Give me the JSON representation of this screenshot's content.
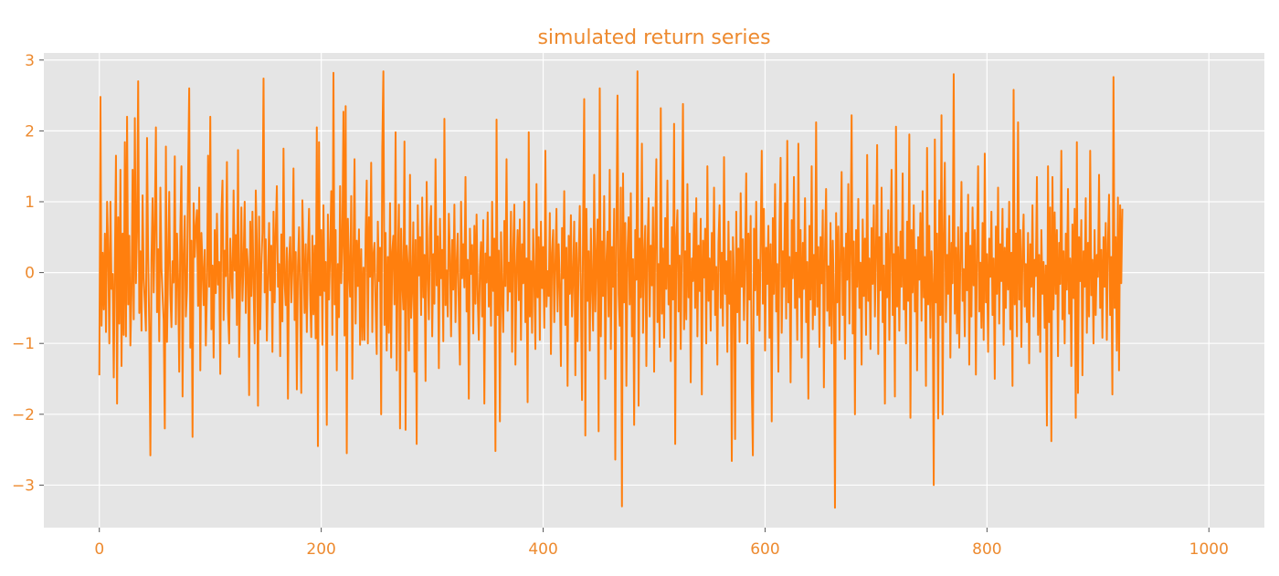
{
  "chart_data": {
    "type": "line",
    "title": "simulated return series",
    "xlabel": "",
    "ylabel": "",
    "xlim": [
      -50,
      1050
    ],
    "ylim": [
      -3.6,
      3.1
    ],
    "x_ticks": [
      0,
      200,
      400,
      600,
      800,
      1000
    ],
    "x_tick_labels": [
      "0",
      "200",
      "400",
      "600",
      "800",
      "1000"
    ],
    "y_ticks": [
      -3,
      -2,
      -1,
      0,
      1,
      2,
      3
    ],
    "y_tick_labels": [
      "−3",
      "−2",
      "−1",
      "0",
      "1",
      "2",
      "3"
    ],
    "grid": true,
    "legend": "none",
    "style": "ggplot",
    "colors": {
      "line": "#ff7f0e",
      "text": "#ed8a2f",
      "plot_background": "#e5e5e5",
      "grid": "#ffffff"
    },
    "series": [
      {
        "x_start": 0,
        "x_step": 1,
        "values": [
          -1.45,
          2.48,
          -0.75,
          0.28,
          -0.52,
          0.55,
          -0.84,
          1.0,
          0.29,
          -1.0,
          1.0,
          -0.23,
          -0.02,
          -1.48,
          0.12,
          1.65,
          -1.85,
          0.78,
          -0.72,
          1.45,
          -1.32,
          0.55,
          -0.88,
          1.84,
          -0.9,
          2.2,
          -0.45,
          0.52,
          -1.03,
          -0.3,
          1.45,
          -0.66,
          2.18,
          -0.15,
          0.58,
          2.7,
          -0.57,
          0.3,
          -0.82,
          1.09,
          -0.08,
          -0.42,
          -0.82,
          1.9,
          0.2,
          -0.76,
          -2.58,
          0.18,
          1.05,
          -0.28,
          0.7,
          2.05,
          -0.56,
          0.33,
          -0.97,
          1.2,
          0.06,
          -0.32,
          -0.68,
          -2.2,
          1.78,
          -0.98,
          0.09,
          1.14,
          -0.31,
          -0.77,
          0.16,
          -0.14,
          1.64,
          -0.73,
          0.55,
          -0.1,
          -1.4,
          0.6,
          1.5,
          -1.75,
          0.24,
          0.8,
          -0.62,
          -0.25,
          1.38,
          2.6,
          -1.06,
          0.45,
          -2.32,
          0.98,
          0.22,
          0.64,
          0.88,
          -0.47,
          1.2,
          -1.38,
          0.56,
          0.08,
          -0.46,
          0.32,
          -1.03,
          -0.24,
          1.65,
          -0.2,
          2.2,
          -0.8,
          0.1,
          -1.2,
          0.6,
          -0.29,
          0.83,
          -0.17,
          0.15,
          -1.43,
          0.81,
          1.3,
          -0.67,
          0.31,
          -0.05,
          1.56,
          -0.55,
          -1.0,
          0.48,
          -0.03,
          -0.36,
          1.16,
          0.03,
          0.53,
          -0.74,
          1.73,
          -1.19,
          -0.14,
          0.92,
          -0.4,
          0.15,
          1.0,
          -0.57,
          0.33,
          0.06,
          -1.73,
          0.72,
          -0.33,
          0.86,
          -0.18,
          -1.0,
          1.16,
          0.39,
          -1.88,
          0.79,
          -0.8,
          0.11,
          0.56,
          2.74,
          -0.28,
          0.47,
          -0.96,
          -0.09,
          0.7,
          -0.25,
          0.38,
          -1.12,
          0.86,
          -0.42,
          0.58,
          1.22,
          -0.2,
          0.12,
          -1.18,
          0.54,
          -0.69,
          1.75,
          -0.14,
          -0.46,
          0.35,
          -1.78,
          0.15,
          0.5,
          -0.42,
          0.05,
          1.47,
          -0.67,
          0.29,
          -1.65,
          0.09,
          0.64,
          -0.37,
          -1.7,
          1.02,
          0.3,
          -0.57,
          0.4,
          -0.84,
          0.25,
          0.9,
          -0.33,
          -0.91,
          0.52,
          -0.59,
          0.38,
          -0.93,
          2.05,
          -2.45,
          1.84,
          -0.32,
          0.6,
          -1.02,
          0.95,
          -0.26,
          0.15,
          -2.15,
          0.82,
          -0.38,
          0.27,
          1.15,
          -0.88,
          2.82,
          -0.45,
          0.6,
          -1.38,
          0.12,
          -0.63,
          1.22,
          -0.15,
          0.4,
          2.27,
          -0.89,
          2.35,
          -2.55,
          0.76,
          0.05,
          -0.34,
          1.08,
          -1.5,
          0.21,
          1.6,
          -0.72,
          0.45,
          -0.19,
          0.61,
          -1.02,
          0.33,
          -0.95,
          0.07,
          -0.95,
          0.54,
          1.3,
          -1.0,
          0.78,
          -0.06,
          1.55,
          -0.84,
          0.25,
          0.42,
          -0.47,
          -1.15,
          0.72,
          -0.12,
          0.35,
          -2.0,
          1.75,
          2.84,
          -0.74,
          0.56,
          -1.1,
          0.22,
          -0.85,
          0.98,
          -1.2,
          0.3,
          0.52,
          -0.45,
          1.98,
          -1.38,
          0.14,
          0.96,
          -2.2,
          0.62,
          -0.11,
          -0.52,
          1.85,
          -2.22,
          0.38,
          0.09,
          -1.1,
          1.38,
          -0.64,
          -0.22,
          0.71,
          -1.4,
          0.46,
          -2.42,
          0.95,
          -0.04,
          0.5,
          -0.6,
          1.06,
          -0.35,
          0.25,
          -1.53,
          1.28,
          0.02,
          -0.66,
          0.63,
          0.94,
          -0.9,
          0.26,
          -0.44,
          1.6,
          -0.18,
          0.51,
          -1.35,
          0.76,
          -0.08,
          0.32,
          -0.97,
          2.17,
          -0.46,
          0.03,
          -0.62,
          0.83,
          0.25,
          -0.9,
          0.46,
          -0.24,
          0.96,
          -0.7,
          0.11,
          0.55,
          -0.5,
          -1.3,
          1.0,
          -0.08,
          0.4,
          -0.21,
          1.35,
          -0.55,
          0.18,
          -1.78,
          0.62,
          -0.02,
          0.39,
          -0.86,
          0.66,
          -0.44,
          0.82,
          -0.32,
          -0.95,
          0.08,
          0.43,
          -0.62,
          0.74,
          -1.85,
          0.27,
          -0.14,
          0.85,
          -0.48,
          0.22,
          -0.75,
          1.0,
          -0.26,
          0.48,
          -2.52,
          2.16,
          -0.6,
          0.31,
          -2.1,
          0.57,
          -0.31,
          -0.84,
          0.73,
          -0.19,
          1.6,
          -0.54,
          0.14,
          -0.27,
          0.86,
          -1.12,
          0.33,
          0.96,
          -1.3,
          0.05,
          0.6,
          -0.39,
          0.75,
          -0.95,
          0.4,
          -0.15,
          1.0,
          -0.7,
          0.2,
          -1.83,
          1.98,
          -0.62,
          0.16,
          -0.85,
          0.61,
          -0.1,
          -1.08,
          1.25,
          -0.35,
          0.5,
          -0.95,
          0.72,
          -0.22,
          0.36,
          -0.78,
          1.72,
          -0.48,
          0.02,
          -0.33,
          0.84,
          -1.15,
          0.28,
          0.6,
          -0.7,
          0.1,
          0.9,
          -0.55,
          0.4,
          -0.2,
          -1.32,
          0.63,
          -0.08,
          1.15,
          -0.74,
          0.35,
          -1.6,
          0.52,
          -0.3,
          0.81,
          -0.62,
          -0.05,
          0.72,
          -1.45,
          0.42,
          -0.97,
          0.18,
          0.94,
          -0.28,
          -1.8,
          0.68,
          2.45,
          -2.3,
          0.9,
          -0.4,
          0.3,
          -1.1,
          0.62,
          -0.17,
          -0.82,
          1.38,
          -0.55,
          0.2,
          0.75,
          -2.24,
          2.6,
          -0.9,
          0.44,
          -0.33,
          1.08,
          -1.5,
          0.15,
          0.58,
          -0.62,
          1.45,
          -1.08,
          0.36,
          -0.2,
          0.9,
          -2.64,
          0.55,
          2.5,
          -0.3,
          -0.75,
          1.2,
          -3.3,
          1.4,
          -0.42,
          0.7,
          -1.6,
          0.28,
          0.78,
          -0.45,
          1.12,
          -0.9,
          0.19,
          -2.15,
          0.6,
          -0.1,
          2.84,
          -1.88,
          0.48,
          -0.35,
          1.82,
          -0.85,
          0.22,
          0.66,
          -1.32,
          0.3,
          1.05,
          -0.62,
          0.38,
          -0.18,
          0.92,
          -1.4,
          0.55,
          1.6,
          -0.7,
          0.12,
          -1.05,
          2.32,
          -0.58,
          0.34,
          -0.92,
          0.77,
          -0.23,
          1.3,
          -0.45,
          0.1,
          -1.25,
          0.64,
          -0.38,
          2.1,
          -2.42,
          0.5,
          0.88,
          -0.55,
          0.24,
          -1.08,
          0.43,
          2.38,
          -0.8,
          0.3,
          -0.66,
          1.25,
          -0.35,
          0.55,
          -1.55,
          0.2,
          -0.12,
          0.84,
          -0.5,
          1.05,
          -0.9,
          0.38,
          -0.26,
          0.76,
          -1.72,
          0.45,
          -0.07,
          0.62,
          -1.0,
          1.5,
          -0.4,
          0.2,
          -0.82,
          0.56,
          -0.24,
          1.2,
          -0.6,
          0.08,
          -1.3,
          0.42,
          0.95,
          -0.5,
          0.28,
          -0.75,
          1.63,
          -0.3,
          0.16,
          -1.12,
          0.72,
          -0.44,
          0.3,
          -2.66,
          0.5,
          -0.05,
          -2.35,
          0.86,
          -0.56,
          0.34,
          -0.98,
          1.12,
          -0.2,
          0.47,
          -0.67,
          0.22,
          1.4,
          -1.0,
          0.55,
          -0.38,
          0.8,
          -1.58,
          -2.58,
          0.62,
          -0.25,
          1.0,
          -0.6,
          0.18,
          -0.82,
          0.45,
          1.72,
          -0.44,
          0.9,
          -1.1,
          0.35,
          -0.16,
          0.66,
          -0.92,
          0.4,
          -2.1,
          0.77,
          -0.3,
          1.25,
          -0.55,
          0.12,
          -1.4,
          0.58,
          1.62,
          -0.85,
          0.3,
          -0.2,
          0.98,
          -0.65,
          1.86,
          -0.42,
          0.22,
          -1.55,
          0.74,
          -0.08,
          1.35,
          -0.5,
          0.28,
          -0.95,
          1.82,
          -0.35,
          0.6,
          -1.2,
          0.42,
          -0.23,
          1.05,
          -0.7,
          0.15,
          -1.78,
          0.66,
          -0.38,
          1.5,
          -0.8,
          0.25,
          -0.6,
          2.12,
          -0.48,
          0.36,
          -1.05,
          0.5,
          -0.15,
          0.88,
          -1.62,
          0.3,
          1.18,
          -0.54,
          0.09,
          -0.75,
          0.7,
          -1.0,
          0.45,
          -0.28,
          -3.32,
          0.84,
          -0.42,
          0.65,
          -0.95,
          0.22,
          1.42,
          -0.6,
          0.35,
          -1.22,
          0.55,
          -0.1,
          1.25,
          -0.72,
          0.28,
          2.22,
          -0.86,
          0.44,
          -2.0,
          0.6,
          -0.2,
          1.04,
          -0.5,
          0.14,
          -1.3,
          0.75,
          -0.33,
          0.48,
          -0.88,
          1.66,
          -0.4,
          0.2,
          -1.08,
          0.63,
          -0.16,
          0.95,
          -0.62,
          0.32,
          1.8,
          -1.15,
          0.5,
          -0.25,
          1.2,
          -0.7,
          0.1,
          -1.85,
          0.55,
          -0.35,
          0.88,
          -0.95,
          0.4,
          1.45,
          -0.6,
          0.26,
          -1.75,
          2.06,
          -0.48,
          0.36,
          -0.82,
          0.58,
          -0.2,
          1.4,
          -0.52,
          0.18,
          -1.0,
          0.72,
          -0.4,
          1.95,
          -2.05,
          0.6,
          -0.28,
          0.95,
          -0.55,
          0.32,
          -1.38,
          0.5,
          -0.1,
          0.84,
          -0.68,
          1.15,
          -0.35,
          0.22,
          -1.6,
          1.76,
          -0.45,
          0.66,
          -0.92,
          0.3,
          -0.18,
          -3.0,
          1.88,
          -0.42,
          0.55,
          -2.06,
          1.02,
          -0.6,
          2.22,
          -2.0,
          0.5,
          1.55,
          -0.7,
          0.25,
          -0.3,
          0.8,
          -1.2,
          0.42,
          -0.15,
          2.8,
          -0.58,
          0.35,
          -0.86,
          0.64,
          -1.06,
          0.2,
          1.28,
          -0.4,
          0.05,
          -0.9,
          0.56,
          -0.25,
          1.1,
          -1.3,
          0.38,
          -0.62,
          0.92,
          -0.18,
          0.6,
          -1.44,
          0.3,
          1.5,
          -0.55,
          0.14,
          -0.78,
          0.7,
          -0.95,
          1.68,
          -0.42,
          0.26,
          -1.12,
          0.48,
          -0.06,
          0.86,
          -0.6,
          0.2,
          -1.5,
          0.65,
          -0.3,
          1.2,
          -0.72,
          0.4,
          -0.12,
          0.9,
          -1.02,
          0.35,
          -0.5,
          0.62,
          -0.24,
          1.0,
          -0.8,
          0.28,
          -1.6,
          2.58,
          -0.45,
          0.55,
          -0.9,
          2.12,
          -0.38,
          0.6,
          -1.05,
          0.3,
          0.82,
          -0.48,
          0.12,
          -0.7,
          0.56,
          -1.28,
          0.4,
          -0.2,
          0.95,
          -0.62,
          0.18,
          -0.05,
          1.35,
          -0.88,
          0.25,
          -1.12,
          0.6,
          -0.3,
          0.15,
          -0.78,
          0.1,
          -2.16,
          1.5,
          -0.7,
          0.92,
          -2.38,
          1.35,
          -0.52,
          0.85,
          -0.3,
          0.6,
          -1.18,
          0.42,
          -0.16,
          1.72,
          -0.66,
          0.3,
          -1.0,
          0.55,
          -0.24,
          1.18,
          -0.58,
          0.2,
          -1.32,
          0.68,
          -0.36,
          0.9,
          -2.05,
          1.84,
          -1.7,
          0.5,
          -0.12,
          0.74,
          -1.45,
          0.3,
          -0.2,
          1.05,
          -0.85,
          0.42,
          -0.62,
          1.72,
          -0.32,
          0.18,
          -1.0,
          0.6,
          -0.6,
          0.25,
          -0.06,
          1.38,
          -0.5,
          0.32,
          -0.92,
          0.5,
          -0.2,
          0.7,
          -0.95,
          0.4,
          1.1,
          -0.6,
          0.22,
          -1.72,
          2.76,
          -0.5,
          0.5,
          -1.1,
          1.06,
          -1.38,
          0.95,
          -0.15,
          0.9
        ]
      }
    ]
  }
}
